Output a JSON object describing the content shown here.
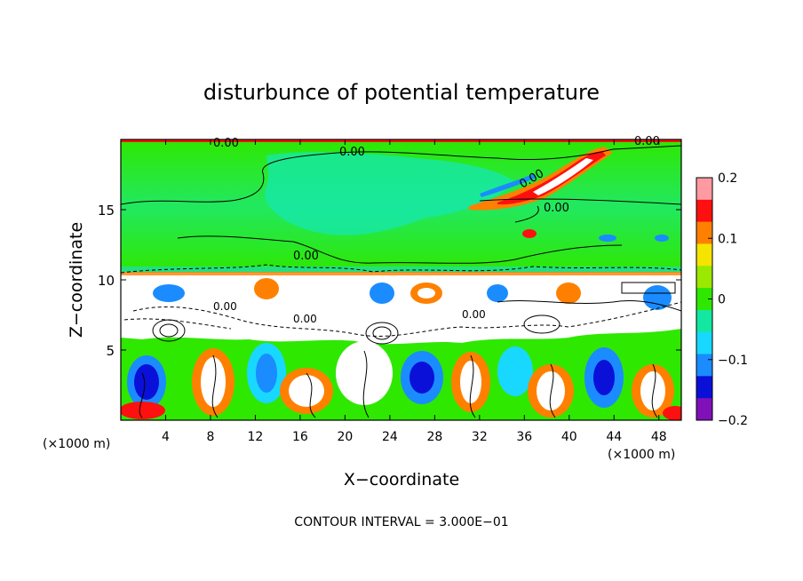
{
  "chart_data": {
    "type": "heatmap",
    "title": "disturbunce of potential temperature",
    "xlabel": "X−coordinate",
    "ylabel": "Z−coordinate",
    "x_unit_left": "(×1000 m)",
    "x_unit_right": "(×1000 m)",
    "xlim": [
      0,
      50
    ],
    "ylim": [
      0,
      20
    ],
    "x_ticks": [
      "4",
      "8",
      "12",
      "16",
      "20",
      "24",
      "28",
      "32",
      "36",
      "40",
      "44",
      "48"
    ],
    "y_ticks": [
      "5",
      "10",
      "15"
    ],
    "colorbar": {
      "range": [
        -0.2,
        0.2
      ],
      "tick_labels": [
        "0.2",
        "0.1",
        "0",
        "−0.1",
        "−0.2"
      ],
      "colors": [
        "#ff9aa2",
        "#ff1010",
        "#ff8000",
        "#f5e400",
        "#9be800",
        "#2ee800",
        "#12e8a0",
        "#18d8ff",
        "#1a8cff",
        "#0a10d8",
        "#8010b8"
      ]
    },
    "contour_labels": [
      "0.00",
      "0.00",
      "0.00",
      "0.00",
      "0.00",
      "0.00",
      "0.00",
      "0.00",
      "0.00"
    ],
    "footer": "CONTOUR INTERVAL = 3.000E−01"
  }
}
